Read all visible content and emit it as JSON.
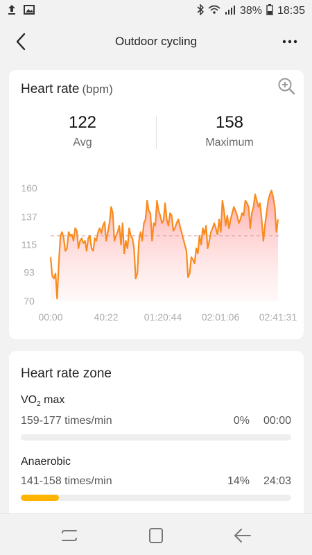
{
  "status": {
    "battery": "38%",
    "time": "18:35",
    "icons": [
      "upload-icon",
      "image-icon",
      "bluetooth-icon",
      "wifi-icon",
      "signal-icon",
      "battery-icon"
    ]
  },
  "header": {
    "title": "Outdoor cycling",
    "back_icon": "back-arrow-icon",
    "more_icon": "more-dots-icon"
  },
  "heart_rate": {
    "title": "Heart rate",
    "unit": "(bpm)",
    "avg_value": "122",
    "avg_label": "Avg",
    "max_value": "158",
    "max_label": "Maximum"
  },
  "chart_data": {
    "type": "area",
    "title": "",
    "xlabel": "",
    "ylabel": "",
    "ylim": [
      70,
      160
    ],
    "yticks": [
      "160",
      "137",
      "115",
      "93",
      "70"
    ],
    "ytick_values": [
      160,
      137,
      115,
      93,
      70
    ],
    "xticks": [
      "00:00",
      "40:22",
      "01:20:44",
      "02:01:06",
      "02:41:31"
    ],
    "average_line": 122,
    "line_color": "#f98b1e",
    "fill_color": "#ff9b9b",
    "grid": false,
    "series": [
      {
        "values": [
          105,
          90,
          88,
          92,
          72,
          100,
          122,
          125,
          120,
          110,
          112,
          125,
          122,
          123,
          118,
          128,
          126,
          112,
          118,
          120,
          116,
          118,
          110,
          120,
          122,
          112,
          110,
          120,
          118,
          125,
          128,
          124,
          130,
          133,
          118,
          125,
          132,
          145,
          140,
          118,
          122,
          125,
          130,
          115,
          132,
          108,
          118,
          112,
          128,
          122,
          120,
          112,
          88,
          92,
          118,
          125,
          118,
          132,
          135,
          150,
          142,
          140,
          118,
          132,
          130,
          150,
          142,
          138,
          132,
          134,
          148,
          135,
          130,
          140,
          138,
          126,
          128,
          132,
          135,
          130,
          125,
          120,
          115,
          110,
          89,
          92,
          105,
          103,
          100,
          112,
          108,
          122,
          115,
          128,
          123,
          130,
          112,
          118,
          125,
          128,
          132,
          128,
          123,
          135,
          125,
          150,
          142,
          130,
          138,
          128,
          135,
          140,
          145,
          142,
          138,
          132,
          135,
          140,
          138,
          150,
          148,
          145,
          128,
          140,
          145,
          155,
          150,
          145,
          148,
          135,
          118,
          130,
          140,
          150,
          155,
          158,
          153,
          145,
          125,
          135
        ]
      }
    ]
  },
  "zones": {
    "title": "Heart rate zone",
    "items": [
      {
        "name": "VO",
        "name_sub": "2",
        "name_suffix": " max",
        "range": "159-177 times/min",
        "percent": "0%",
        "time": "00:00",
        "fill": 0
      },
      {
        "name": "Anaerobic",
        "name_sub": "",
        "name_suffix": "",
        "range": "141-158 times/min",
        "percent": "14%",
        "time": "24:03",
        "fill": 0.14
      }
    ],
    "zoom_icon": "zoom-in-icon"
  },
  "nav": {
    "icons": [
      "recent-apps-icon",
      "home-icon",
      "back-icon"
    ]
  }
}
